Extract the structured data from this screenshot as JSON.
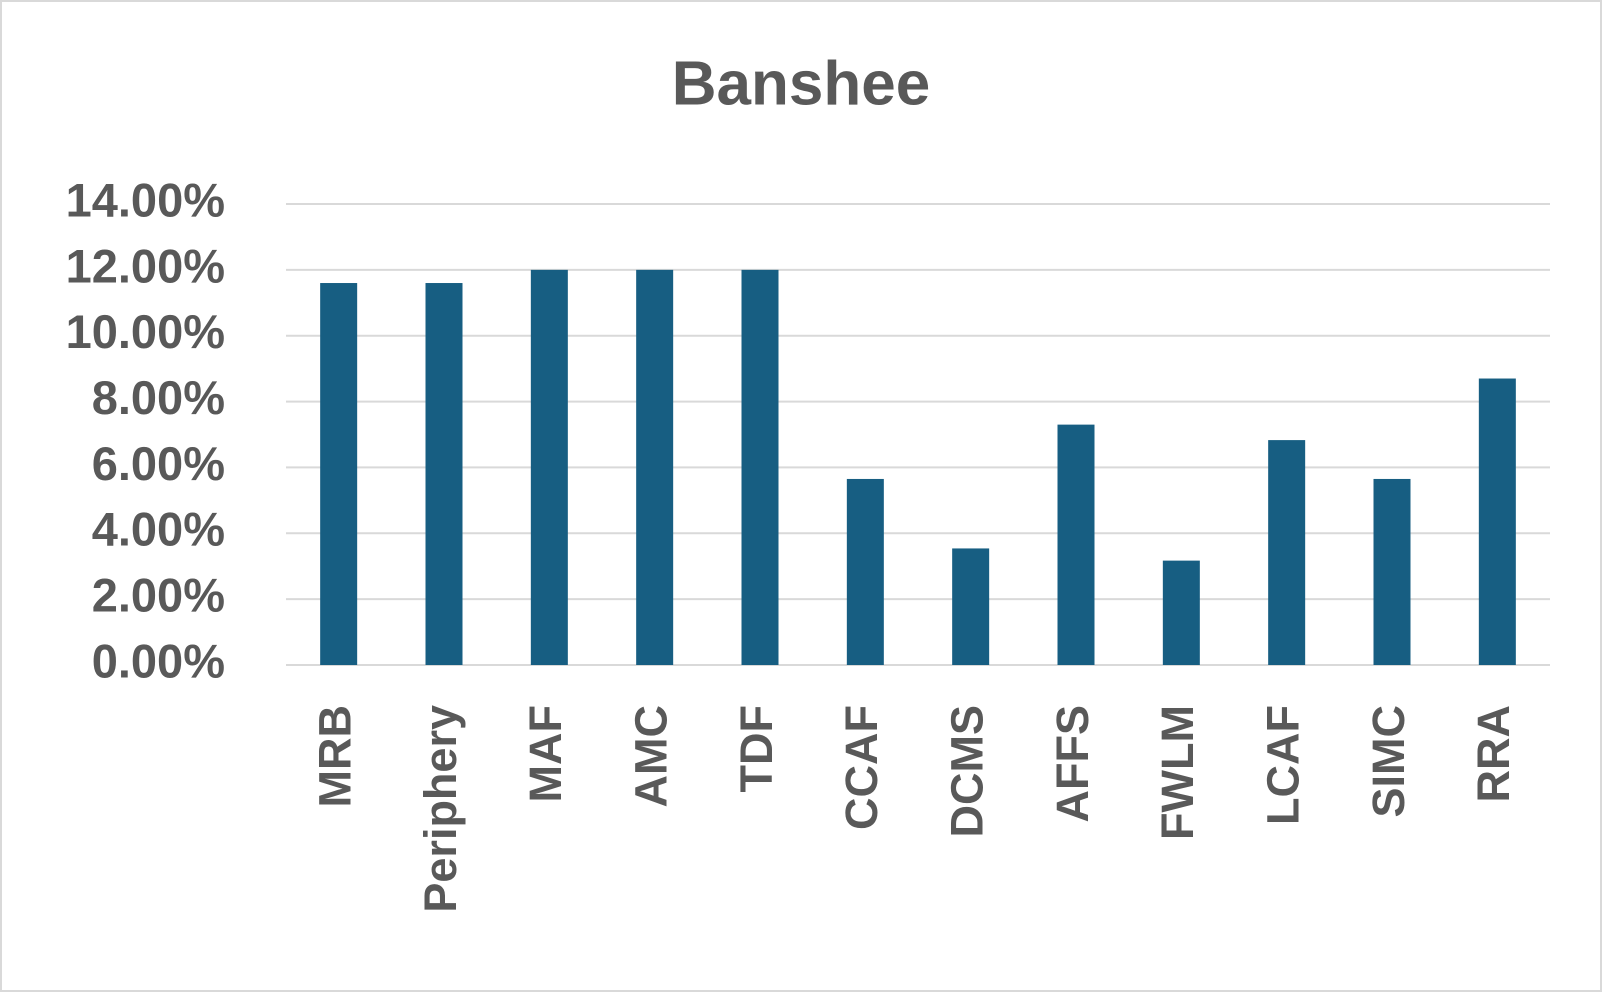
{
  "chart_data": {
    "type": "bar",
    "title": "Banshee",
    "categories": [
      "MRB",
      "Periphery",
      "MAF",
      "AMC",
      "TDF",
      "CCAF",
      "DCMS",
      "AFFS",
      "FWLM",
      "LCAF",
      "SIMC",
      "RRA"
    ],
    "values": [
      11.6,
      11.6,
      12,
      12,
      12,
      5.65,
      3.54,
      7.3,
      3.17,
      6.83,
      5.65,
      8.7
    ],
    "color": "#175e82",
    "ylim": [
      0,
      14
    ],
    "yticks": [
      {
        "value": 0,
        "label": "0.00%"
      },
      {
        "value": 2,
        "label": "2.00%"
      },
      {
        "value": 4,
        "label": "4.00%"
      },
      {
        "value": 6,
        "label": "6.00%"
      },
      {
        "value": 8,
        "label": "8.00%"
      },
      {
        "value": 10,
        "label": "10.00%"
      },
      {
        "value": 12,
        "label": "12.00%"
      },
      {
        "value": 14,
        "label": "14.00%"
      }
    ],
    "grid": true
  }
}
